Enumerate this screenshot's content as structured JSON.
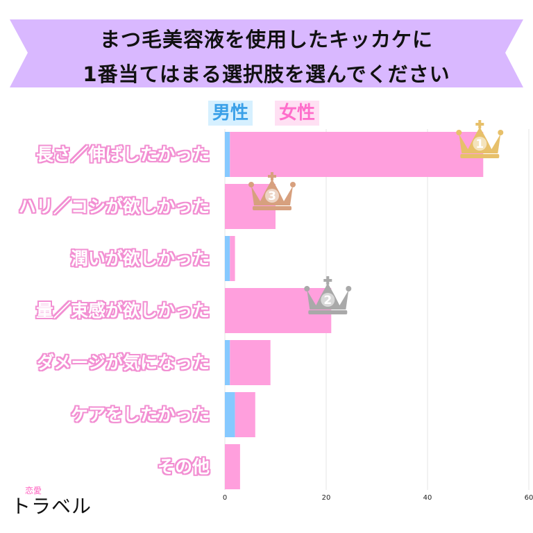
{
  "title": {
    "line1": "まつ毛美容液を使用したキッカケに",
    "line2": "1番当てはまる選択肢を選んでください"
  },
  "colors": {
    "banner": "#d9b8ff",
    "male": "#86c9ff",
    "female": "#ff9fdd",
    "label_outline": "#f28fd2",
    "grid": "#e6e6e6",
    "gold": "#e7c06a",
    "silver": "#a9a9a9",
    "bronze": "#d7a07e"
  },
  "legend": {
    "male": "男性",
    "female": "女性"
  },
  "brand": {
    "small": "恋愛",
    "main": "トラベル"
  },
  "chart_data": {
    "type": "bar",
    "orientation": "horizontal",
    "stacked": true,
    "categories": [
      "長さ／伸ばしたかった",
      "ハリ／コシが欲しかった",
      "潤いが欲しかった",
      "量／束感が欲しかった",
      "ダメージが気になった",
      "ケアをしたかった",
      "その他"
    ],
    "series": [
      {
        "name": "男性",
        "values": [
          1,
          0,
          1,
          0,
          1,
          2,
          0
        ]
      },
      {
        "name": "女性",
        "values": [
          50,
          10,
          1,
          21,
          8,
          4,
          3
        ]
      }
    ],
    "xticks": [
      0,
      20,
      40,
      60
    ],
    "xlim": [
      0,
      60
    ],
    "grid": true,
    "legend_position": "top",
    "rank_badges": [
      {
        "category_index": 0,
        "rank": "1",
        "style": "gold"
      },
      {
        "category_index": 3,
        "rank": "2",
        "style": "silver"
      },
      {
        "category_index": 1,
        "rank": "3",
        "style": "bronze"
      }
    ]
  }
}
